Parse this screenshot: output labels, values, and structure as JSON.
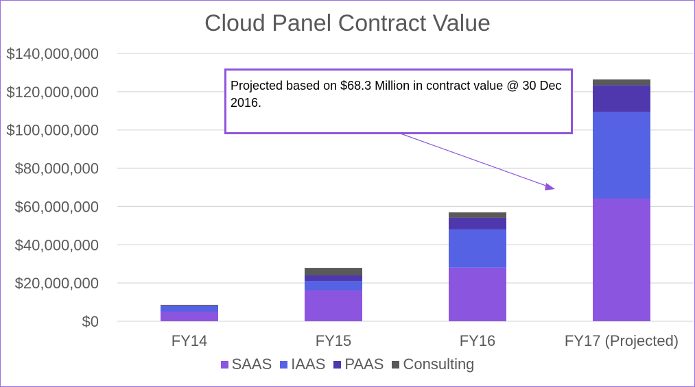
{
  "chart_data": {
    "type": "bar",
    "stacked": true,
    "title": "Cloud Panel Contract Value",
    "categories": [
      "FY14",
      "FY15",
      "FY16",
      "FY17 (Projected)"
    ],
    "series": [
      {
        "name": "SAAS",
        "color": "#8c55df",
        "values": [
          5000000,
          16100000,
          28000000,
          64100000
        ]
      },
      {
        "name": "IAAS",
        "color": "#5562e3",
        "values": [
          3000000,
          5000000,
          20000000,
          45200000
        ]
      },
      {
        "name": "PAAS",
        "color": "#4f38ad",
        "values": [
          200000,
          2900000,
          6100000,
          14100000
        ]
      },
      {
        "name": "Consulting",
        "color": "#595959",
        "values": [
          400000,
          3900000,
          2800000,
          3000000
        ]
      }
    ],
    "ylim": [
      0,
      140000000
    ],
    "yticks": [
      "$0",
      "$20,000,000",
      "$40,000,000",
      "$60,000,000",
      "$80,000,000",
      "$100,000,000",
      "$120,000,000",
      "$140,000,000"
    ],
    "grid": true,
    "legend": "bottom",
    "annotation": "Projected based on $68.3 Million in contract value @ 30 Dec 2016."
  }
}
